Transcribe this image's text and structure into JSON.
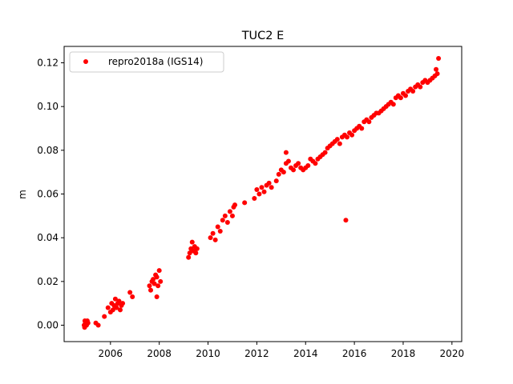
{
  "chart_data": {
    "type": "scatter",
    "title": "TUC2 E",
    "xlabel": "",
    "ylabel": "m",
    "xlim": [
      2004.1,
      2020.4
    ],
    "ylim": [
      -0.0075,
      0.1275
    ],
    "xticks": [
      2006,
      2008,
      2010,
      2012,
      2014,
      2016,
      2018,
      2020
    ],
    "xtick_labels": [
      "2006",
      "2008",
      "2010",
      "2012",
      "2014",
      "2016",
      "2018",
      "2020"
    ],
    "yticks": [
      0.0,
      0.02,
      0.04,
      0.06,
      0.08,
      0.1,
      0.12
    ],
    "ytick_labels": [
      "0.00",
      "0.02",
      "0.04",
      "0.06",
      "0.08",
      "0.10",
      "0.12"
    ],
    "grid": false,
    "legend": {
      "position": "upper-left"
    },
    "series": [
      {
        "name": "repro2018a (IGS14)",
        "color": "#ff0000",
        "marker": "circle",
        "points": [
          [
            2004.92,
            0.0
          ],
          [
            2004.94,
            -0.001
          ],
          [
            2004.95,
            0.002
          ],
          [
            2004.97,
            0.001
          ],
          [
            2004.98,
            0.0
          ],
          [
            2005.0,
            0.001
          ],
          [
            2005.02,
            0.0
          ],
          [
            2005.05,
            0.002
          ],
          [
            2005.08,
            0.001
          ],
          [
            2005.4,
            0.001
          ],
          [
            2005.5,
            0.0
          ],
          [
            2005.75,
            0.004
          ],
          [
            2005.9,
            0.008
          ],
          [
            2006.0,
            0.006
          ],
          [
            2006.05,
            0.01
          ],
          [
            2006.1,
            0.007
          ],
          [
            2006.15,
            0.009
          ],
          [
            2006.2,
            0.012
          ],
          [
            2006.25,
            0.008
          ],
          [
            2006.3,
            0.01
          ],
          [
            2006.35,
            0.011
          ],
          [
            2006.4,
            0.007
          ],
          [
            2006.45,
            0.009
          ],
          [
            2006.5,
            0.01
          ],
          [
            2006.8,
            0.015
          ],
          [
            2006.9,
            0.013
          ],
          [
            2007.6,
            0.018
          ],
          [
            2007.65,
            0.016
          ],
          [
            2007.7,
            0.02
          ],
          [
            2007.75,
            0.021
          ],
          [
            2007.8,
            0.019
          ],
          [
            2007.85,
            0.023
          ],
          [
            2007.9,
            0.022
          ],
          [
            2007.95,
            0.018
          ],
          [
            2008.0,
            0.025
          ],
          [
            2008.05,
            0.02
          ],
          [
            2007.9,
            0.013
          ],
          [
            2009.2,
            0.031
          ],
          [
            2009.25,
            0.033
          ],
          [
            2009.3,
            0.035
          ],
          [
            2009.35,
            0.038
          ],
          [
            2009.4,
            0.034
          ],
          [
            2009.45,
            0.036
          ],
          [
            2009.5,
            0.033
          ],
          [
            2009.55,
            0.035
          ],
          [
            2010.1,
            0.04
          ],
          [
            2010.2,
            0.042
          ],
          [
            2010.3,
            0.039
          ],
          [
            2010.4,
            0.045
          ],
          [
            2010.5,
            0.043
          ],
          [
            2010.6,
            0.048
          ],
          [
            2010.7,
            0.05
          ],
          [
            2010.8,
            0.047
          ],
          [
            2010.9,
            0.052
          ],
          [
            2011.0,
            0.05
          ],
          [
            2011.05,
            0.054
          ],
          [
            2011.1,
            0.055
          ],
          [
            2011.5,
            0.056
          ],
          [
            2011.9,
            0.058
          ],
          [
            2012.0,
            0.062
          ],
          [
            2012.1,
            0.06
          ],
          [
            2012.2,
            0.063
          ],
          [
            2012.3,
            0.061
          ],
          [
            2012.4,
            0.064
          ],
          [
            2012.5,
            0.065
          ],
          [
            2012.6,
            0.063
          ],
          [
            2012.8,
            0.066
          ],
          [
            2012.9,
            0.069
          ],
          [
            2013.0,
            0.071
          ],
          [
            2013.1,
            0.07
          ],
          [
            2013.2,
            0.074
          ],
          [
            2013.3,
            0.075
          ],
          [
            2013.4,
            0.072
          ],
          [
            2013.5,
            0.071
          ],
          [
            2013.6,
            0.073
          ],
          [
            2013.7,
            0.074
          ],
          [
            2013.8,
            0.072
          ],
          [
            2013.9,
            0.071
          ],
          [
            2013.2,
            0.079
          ],
          [
            2014.0,
            0.072
          ],
          [
            2014.1,
            0.073
          ],
          [
            2014.2,
            0.076
          ],
          [
            2014.3,
            0.075
          ],
          [
            2014.4,
            0.074
          ],
          [
            2014.5,
            0.076
          ],
          [
            2014.6,
            0.077
          ],
          [
            2014.7,
            0.078
          ],
          [
            2014.8,
            0.079
          ],
          [
            2014.9,
            0.081
          ],
          [
            2015.0,
            0.082
          ],
          [
            2015.1,
            0.083
          ],
          [
            2015.2,
            0.084
          ],
          [
            2015.3,
            0.085
          ],
          [
            2015.4,
            0.083
          ],
          [
            2015.5,
            0.086
          ],
          [
            2015.6,
            0.087
          ],
          [
            2015.65,
            0.048
          ],
          [
            2015.7,
            0.086
          ],
          [
            2015.8,
            0.088
          ],
          [
            2015.9,
            0.087
          ],
          [
            2016.0,
            0.089
          ],
          [
            2016.1,
            0.09
          ],
          [
            2016.2,
            0.091
          ],
          [
            2016.3,
            0.09
          ],
          [
            2016.4,
            0.093
          ],
          [
            2016.5,
            0.094
          ],
          [
            2016.6,
            0.093
          ],
          [
            2016.7,
            0.095
          ],
          [
            2016.8,
            0.096
          ],
          [
            2016.9,
            0.097
          ],
          [
            2017.0,
            0.097
          ],
          [
            2017.1,
            0.098
          ],
          [
            2017.2,
            0.099
          ],
          [
            2017.3,
            0.1
          ],
          [
            2017.4,
            0.101
          ],
          [
            2017.5,
            0.102
          ],
          [
            2017.6,
            0.101
          ],
          [
            2017.7,
            0.104
          ],
          [
            2017.8,
            0.105
          ],
          [
            2017.9,
            0.104
          ],
          [
            2018.0,
            0.106
          ],
          [
            2018.1,
            0.105
          ],
          [
            2018.2,
            0.107
          ],
          [
            2018.3,
            0.108
          ],
          [
            2018.4,
            0.107
          ],
          [
            2018.5,
            0.109
          ],
          [
            2018.6,
            0.11
          ],
          [
            2018.7,
            0.109
          ],
          [
            2018.8,
            0.111
          ],
          [
            2018.9,
            0.112
          ],
          [
            2019.0,
            0.111
          ],
          [
            2019.1,
            0.112
          ],
          [
            2019.2,
            0.113
          ],
          [
            2019.3,
            0.114
          ],
          [
            2019.35,
            0.117
          ],
          [
            2019.4,
            0.115
          ],
          [
            2019.45,
            0.122
          ]
        ]
      }
    ]
  }
}
